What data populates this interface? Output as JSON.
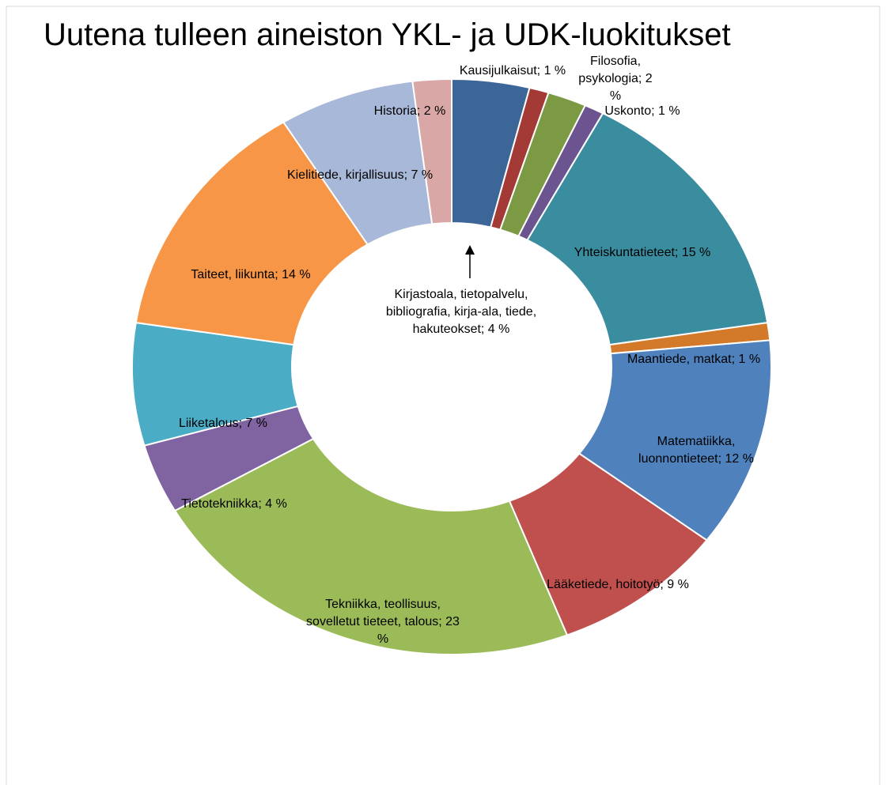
{
  "chart_data": {
    "type": "donut",
    "title": "Uutena tulleen aineiston YKL- ja UDK-luokitukset",
    "categories": [
      "Kirjastoala, tietopalvelu, bibliografia, kirja-ala, tiede, hakuteokset",
      "Kausijulkaisut",
      "Filosofia, psykologia",
      "Uskonto",
      "Yhteiskuntatieteet",
      "Maantiede, matkat",
      "Matematiikka, luonnontieteet",
      "Lääketiede, hoitotyö",
      "Tekniikka, teollisuus, sovelletut tieteet, talous",
      "Tietotekniikka",
      "Liiketalous",
      "Taiteet, liikunta",
      "Kielitiede, kirjallisuus",
      "Historia"
    ],
    "values": [
      4,
      1,
      2,
      1,
      15,
      1,
      12,
      9,
      23,
      4,
      7,
      14,
      7,
      2
    ],
    "value_labels": [
      "4 %",
      "1 %",
      "2 %",
      "1 %",
      "15 %",
      "1 %",
      "12 %",
      "9 %",
      "23 %",
      "4 %",
      "7 %",
      "14 %",
      "7 %",
      "2 %"
    ],
    "colors": [
      "#3c6598",
      "#a33a36",
      "#7b9a43",
      "#6c5490",
      "#3a8c9f",
      "#d27a2a",
      "#4f81bd",
      "#c0504d",
      "#9bbb59",
      "#8064a2",
      "#4bacc6",
      "#f79646",
      "#a8b8d8",
      "#d9a8a6"
    ]
  }
}
